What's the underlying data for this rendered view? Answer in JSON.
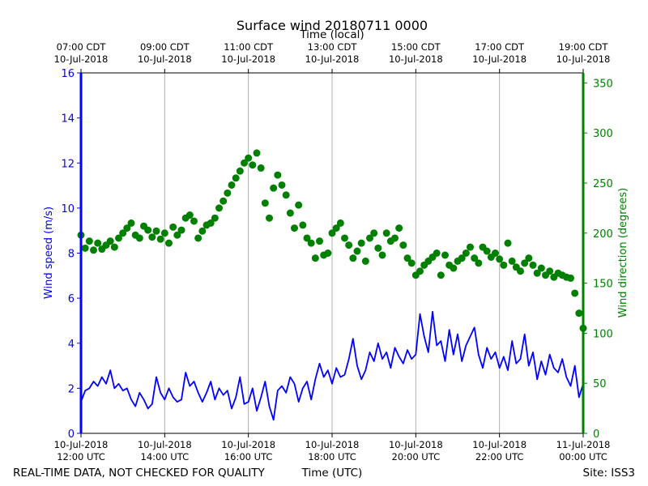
{
  "chart_data": {
    "type": "line",
    "title": "Surface wind 20180711 0000",
    "top_axis_label": "Time (local)",
    "xlabel": "Time (UTC)",
    "footer_left": "REAL-TIME DATA, NOT CHECKED FOR QUALITY",
    "footer_right": "Site: ISS3",
    "x_unit": "hours UTC",
    "xlim": [
      12,
      24
    ],
    "bottom_ticks": [
      {
        "hour": 12,
        "line1": "10-Jul-2018",
        "line2": "12:00 UTC"
      },
      {
        "hour": 14,
        "line1": "10-Jul-2018",
        "line2": "14:00 UTC"
      },
      {
        "hour": 16,
        "line1": "10-Jul-2018",
        "line2": "16:00 UTC"
      },
      {
        "hour": 18,
        "line1": "10-Jul-2018",
        "line2": "18:00 UTC"
      },
      {
        "hour": 20,
        "line1": "10-Jul-2018",
        "line2": "20:00 UTC"
      },
      {
        "hour": 22,
        "line1": "10-Jul-2018",
        "line2": "22:00 UTC"
      },
      {
        "hour": 24,
        "line1": "11-Jul-2018",
        "line2": "00:00 UTC"
      }
    ],
    "top_ticks": [
      {
        "hour": 12,
        "line1": "07:00 CDT",
        "line2": "10-Jul-2018"
      },
      {
        "hour": 14,
        "line1": "09:00 CDT",
        "line2": "10-Jul-2018"
      },
      {
        "hour": 16,
        "line1": "11:00 CDT",
        "line2": "10-Jul-2018"
      },
      {
        "hour": 18,
        "line1": "13:00 CDT",
        "line2": "10-Jul-2018"
      },
      {
        "hour": 20,
        "line1": "15:00 CDT",
        "line2": "10-Jul-2018"
      },
      {
        "hour": 22,
        "line1": "17:00 CDT",
        "line2": "10-Jul-2018"
      },
      {
        "hour": 24,
        "line1": "19:00 CDT",
        "line2": "10-Jul-2018"
      }
    ],
    "left_axis": {
      "label": "Wind speed (m/s)",
      "ylim": [
        0,
        16
      ],
      "ticks": [
        0,
        2,
        4,
        6,
        8,
        10,
        12,
        14,
        16
      ],
      "color": "#0000ff"
    },
    "right_axis": {
      "label": "Wind direction (degrees)",
      "ylim": [
        0,
        360
      ],
      "ticks": [
        0,
        50,
        100,
        150,
        200,
        250,
        300,
        350
      ],
      "color": "#008000"
    },
    "grid": "vertical",
    "series": [
      {
        "name": "Wind speed",
        "type": "line",
        "axis": "left",
        "color": "#0000ff",
        "x": [
          12.0,
          12.1,
          12.2,
          12.3,
          12.4,
          12.5,
          12.6,
          12.7,
          12.8,
          12.9,
          13.0,
          13.1,
          13.2,
          13.3,
          13.4,
          13.5,
          13.6,
          13.7,
          13.8,
          13.9,
          14.0,
          14.1,
          14.2,
          14.3,
          14.4,
          14.5,
          14.6,
          14.7,
          14.8,
          14.9,
          15.0,
          15.1,
          15.2,
          15.3,
          15.4,
          15.5,
          15.6,
          15.7,
          15.8,
          15.9,
          16.0,
          16.1,
          16.2,
          16.3,
          16.4,
          16.5,
          16.6,
          16.7,
          16.8,
          16.9,
          17.0,
          17.1,
          17.2,
          17.3,
          17.4,
          17.5,
          17.6,
          17.7,
          17.8,
          17.9,
          18.0,
          18.1,
          18.2,
          18.3,
          18.4,
          18.5,
          18.6,
          18.7,
          18.8,
          18.9,
          19.0,
          19.1,
          19.2,
          19.3,
          19.4,
          19.5,
          19.6,
          19.7,
          19.8,
          19.9,
          20.0,
          20.1,
          20.2,
          20.3,
          20.4,
          20.5,
          20.6,
          20.7,
          20.8,
          20.9,
          21.0,
          21.1,
          21.2,
          21.3,
          21.4,
          21.5,
          21.6,
          21.7,
          21.8,
          21.9,
          22.0,
          22.1,
          22.2,
          22.3,
          22.4,
          22.5,
          22.6,
          22.7,
          22.8,
          22.9,
          23.0,
          23.1,
          23.2,
          23.3,
          23.4,
          23.5,
          23.6,
          23.7,
          23.8,
          23.9,
          24.0
        ],
        "values": [
          1.4,
          1.9,
          2.0,
          2.3,
          2.1,
          2.5,
          2.2,
          2.8,
          2.0,
          2.2,
          1.9,
          2.0,
          1.5,
          1.2,
          1.8,
          1.5,
          1.1,
          1.3,
          2.5,
          1.8,
          1.5,
          2.0,
          1.6,
          1.4,
          1.5,
          2.7,
          2.1,
          2.3,
          1.8,
          1.4,
          1.8,
          2.3,
          1.5,
          2.0,
          1.7,
          1.9,
          1.1,
          1.6,
          2.5,
          1.3,
          1.4,
          2.0,
          1.0,
          1.6,
          2.3,
          1.2,
          0.6,
          1.9,
          2.1,
          1.8,
          2.5,
          2.2,
          1.4,
          2.0,
          2.3,
          1.5,
          2.4,
          3.1,
          2.5,
          2.8,
          2.2,
          2.9,
          2.5,
          2.6,
          3.3,
          4.2,
          3.0,
          2.4,
          2.8,
          3.6,
          3.2,
          4.0,
          3.3,
          3.6,
          2.9,
          3.8,
          3.4,
          3.1,
          3.7,
          3.3,
          3.5,
          5.3,
          4.3,
          3.6,
          5.4,
          3.9,
          4.1,
          3.2,
          4.6,
          3.5,
          4.4,
          3.2,
          3.9,
          4.3,
          4.7,
          3.5,
          2.9,
          3.8,
          3.3,
          3.6,
          2.9,
          3.4,
          2.8,
          4.1,
          3.1,
          3.3,
          4.4,
          3.0,
          3.6,
          2.4,
          3.2,
          2.6,
          3.5,
          2.9,
          2.7,
          3.3,
          2.5,
          2.1,
          3.0,
          1.6,
          2.2
        ]
      },
      {
        "name": "Wind direction",
        "type": "scatter",
        "axis": "right",
        "color": "#008000",
        "x": [
          12.0,
          12.1,
          12.2,
          12.3,
          12.4,
          12.5,
          12.6,
          12.7,
          12.8,
          12.9,
          13.0,
          13.1,
          13.2,
          13.3,
          13.4,
          13.5,
          13.6,
          13.7,
          13.8,
          13.9,
          14.0,
          14.1,
          14.2,
          14.3,
          14.4,
          14.5,
          14.6,
          14.7,
          14.8,
          14.9,
          15.0,
          15.1,
          15.2,
          15.3,
          15.4,
          15.5,
          15.6,
          15.7,
          15.8,
          15.9,
          16.0,
          16.1,
          16.2,
          16.3,
          16.4,
          16.5,
          16.6,
          16.7,
          16.8,
          16.9,
          17.0,
          17.1,
          17.2,
          17.3,
          17.4,
          17.5,
          17.6,
          17.7,
          17.8,
          17.9,
          18.0,
          18.1,
          18.2,
          18.3,
          18.4,
          18.5,
          18.6,
          18.7,
          18.8,
          18.9,
          19.0,
          19.1,
          19.2,
          19.3,
          19.4,
          19.5,
          19.6,
          19.7,
          19.8,
          19.9,
          20.0,
          20.1,
          20.2,
          20.3,
          20.4,
          20.5,
          20.6,
          20.7,
          20.8,
          20.9,
          21.0,
          21.1,
          21.2,
          21.3,
          21.4,
          21.5,
          21.6,
          21.7,
          21.8,
          21.9,
          22.0,
          22.1,
          22.2,
          22.3,
          22.4,
          22.5,
          22.6,
          22.7,
          22.8,
          22.9,
          23.0,
          23.1,
          23.2,
          23.3,
          23.4,
          23.5,
          23.6,
          23.7,
          23.8,
          23.9,
          24.0
        ],
        "values": [
          198,
          185,
          192,
          183,
          190,
          184,
          188,
          192,
          186,
          195,
          200,
          205,
          210,
          198,
          195,
          207,
          203,
          196,
          202,
          194,
          200,
          190,
          206,
          198,
          203,
          215,
          218,
          212,
          195,
          202,
          208,
          210,
          215,
          225,
          232,
          240,
          248,
          255,
          262,
          270,
          275,
          268,
          280,
          265,
          230,
          215,
          245,
          258,
          248,
          238,
          220,
          205,
          228,
          208,
          195,
          190,
          175,
          192,
          178,
          180,
          200,
          205,
          210,
          195,
          188,
          175,
          182,
          190,
          172,
          195,
          200,
          185,
          178,
          200,
          192,
          195,
          205,
          188,
          175,
          170,
          158,
          162,
          168,
          172,
          176,
          180,
          158,
          178,
          168,
          165,
          172,
          175,
          180,
          186,
          175,
          170,
          186,
          182,
          176,
          180,
          174,
          168,
          190,
          172,
          166,
          162,
          170,
          175,
          168,
          160,
          165,
          158,
          162,
          156,
          160,
          158,
          156,
          155,
          140,
          120,
          105
        ]
      }
    ]
  }
}
